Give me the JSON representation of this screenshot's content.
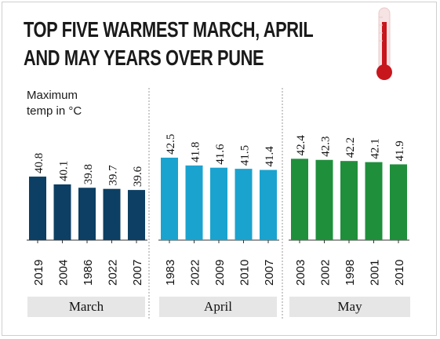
{
  "title_line1": "TOP FIVE WARMEST MARCH, APRIL",
  "title_line2": "AND MAY YEARS OVER PUNE",
  "ylabel_line1": "Maximum",
  "ylabel_line2": "temp in °C",
  "thermometer_icon": "thermometer-icon",
  "colors": {
    "march": "#0c3f63",
    "april": "#1aa3cf",
    "may": "#1f8f3c",
    "axis": "#333333",
    "label_bg": "#e6e6e6"
  },
  "chart_data": {
    "type": "bar",
    "ylabel": "Maximum temp in °C",
    "groups": [
      {
        "name": "March",
        "label": "March",
        "categories": [
          "2019",
          "2004",
          "1986",
          "2022",
          "2007"
        ],
        "values": [
          40.8,
          40.1,
          39.8,
          39.7,
          39.6
        ],
        "value_labels": [
          "40.8",
          "40.1",
          "39.8",
          "39.7",
          "39.6"
        ]
      },
      {
        "name": "April",
        "label": "April",
        "categories": [
          "1983",
          "2022",
          "2009",
          "2010",
          "2007"
        ],
        "values": [
          42.5,
          41.8,
          41.6,
          41.5,
          41.4
        ],
        "value_labels": [
          "42.5",
          "41.8",
          "41.6",
          "41.5",
          "41.4"
        ]
      },
      {
        "name": "May",
        "label": "May",
        "categories": [
          "2003",
          "2002",
          "1998",
          "2001",
          "2010"
        ],
        "values": [
          42.4,
          42.3,
          42.2,
          42.1,
          41.9
        ],
        "value_labels": [
          "42.4",
          "42.3",
          "42.2",
          "42.1",
          "41.9"
        ]
      }
    ]
  }
}
